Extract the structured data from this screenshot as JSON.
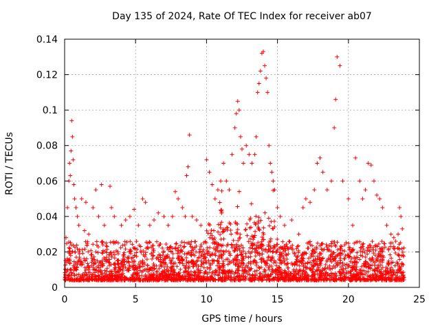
{
  "chart_data": {
    "type": "scatter",
    "title": "Day 135 of 2024, Rate Of TEC Index for receiver ab07",
    "xlabel": "GPS time / hours",
    "ylabel": "ROTI / TECUs",
    "xlim": [
      0,
      25
    ],
    "ylim": [
      0,
      0.14
    ],
    "x_ticks": [
      0,
      5,
      10,
      15,
      20,
      25
    ],
    "y_ticks": [
      0,
      0.02,
      0.04,
      0.06,
      0.08,
      0.1,
      0.12,
      0.14
    ],
    "x_tick_labels": [
      "0",
      "5",
      "10",
      "15",
      "20",
      "25"
    ],
    "y_tick_labels": [
      "0",
      "0.02",
      "0.04",
      "0.06",
      "0.08",
      "0.1",
      "0.12",
      "0.14"
    ],
    "grid": true,
    "marker": "+",
    "color": "#ff0000",
    "series": [
      {
        "x": [
          0.1,
          0.2,
          0.3,
          0.35,
          0.4,
          0.45,
          0.5,
          0.55,
          0.6,
          0.65,
          0.7,
          0.8,
          0.9,
          1.0,
          1.2,
          1.4,
          1.5,
          1.7,
          2.0,
          2.2,
          2.4,
          2.6,
          2.8,
          3.2,
          3.3,
          3.5,
          4.0,
          4.3,
          4.6,
          4.9,
          5.2,
          5.5,
          5.7,
          6.0,
          6.3,
          6.6,
          7.0,
          7.3,
          7.6,
          7.8,
          8.0,
          8.3,
          8.5,
          8.6,
          8.7,
          8.8,
          9.0,
          9.3,
          9.6,
          10.0,
          10.2,
          10.4,
          10.6,
          10.8,
          11.0,
          11.2,
          11.4,
          11.6,
          11.8,
          12.0,
          12.1,
          12.2,
          12.3,
          12.4,
          12.5,
          12.6,
          12.8,
          13.0,
          13.2,
          13.4,
          13.5,
          13.6,
          13.7,
          13.8,
          13.9,
          14.0,
          14.1,
          14.2,
          14.3,
          14.4,
          14.5,
          14.6,
          14.7,
          14.8,
          15.0,
          15.2,
          15.5,
          16.0,
          16.5,
          16.8,
          17.0,
          17.3,
          17.6,
          17.8,
          18.0,
          18.2,
          18.5,
          18.8,
          19.0,
          19.1,
          19.2,
          19.4,
          19.6,
          20.0,
          20.3,
          20.5,
          20.8,
          21.0,
          21.2,
          21.4,
          21.6,
          21.8,
          22.0,
          22.2,
          22.4,
          22.7,
          23.0,
          23.2,
          23.5,
          23.6,
          23.7,
          23.8
        ],
        "y": [
          0.028,
          0.045,
          0.06,
          0.07,
          0.063,
          0.077,
          0.094,
          0.085,
          0.072,
          0.058,
          0.05,
          0.045,
          0.04,
          0.035,
          0.05,
          0.032,
          0.048,
          0.03,
          0.045,
          0.055,
          0.04,
          0.058,
          0.035,
          0.057,
          0.045,
          0.04,
          0.035,
          0.038,
          0.04,
          0.044,
          0.035,
          0.05,
          0.048,
          0.035,
          0.038,
          0.042,
          0.04,
          0.035,
          0.04,
          0.054,
          0.05,
          0.045,
          0.04,
          0.063,
          0.068,
          0.086,
          0.04,
          0.038,
          0.035,
          0.072,
          0.065,
          0.058,
          0.05,
          0.055,
          0.06,
          0.07,
          0.06,
          0.055,
          0.075,
          0.09,
          0.098,
          0.105,
          0.1,
          0.085,
          0.078,
          0.07,
          0.08,
          0.075,
          0.07,
          0.075,
          0.085,
          0.11,
          0.115,
          0.122,
          0.132,
          0.133,
          0.125,
          0.118,
          0.11,
          0.08,
          0.07,
          0.065,
          0.06,
          0.055,
          0.045,
          0.04,
          0.035,
          0.038,
          0.03,
          0.045,
          0.05,
          0.048,
          0.055,
          0.07,
          0.073,
          0.065,
          0.055,
          0.06,
          0.09,
          0.106,
          0.13,
          0.125,
          0.06,
          0.05,
          0.035,
          0.073,
          0.06,
          0.05,
          0.055,
          0.07,
          0.069,
          0.06,
          0.052,
          0.05,
          0.045,
          0.035,
          0.03,
          0.028,
          0.03,
          0.045,
          0.04,
          0.033
        ]
      }
    ]
  }
}
